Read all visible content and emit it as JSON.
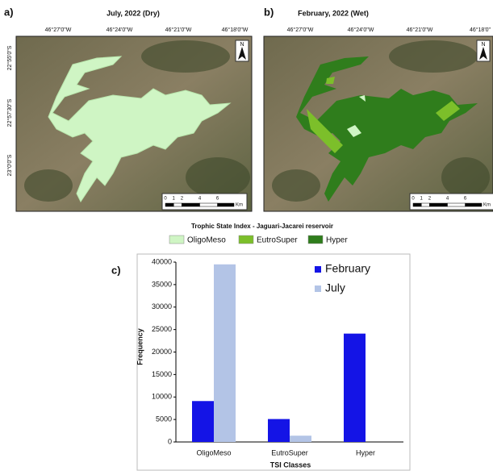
{
  "panels": [
    {
      "label": "a)",
      "title": "July, 2022 (Dry)",
      "lon_labels": [
        "46°27'0\"W",
        "46°24'0\"W",
        "46°21'0\"W",
        "46°18'0\"W"
      ],
      "lat_labels": [
        "22°55'0\"S",
        "22°57'30\"S",
        "23°0'0\"S"
      ],
      "north": "N",
      "scale_labels": [
        "0",
        "1",
        "2",
        "4",
        "6"
      ],
      "scale_unit": "Km"
    },
    {
      "label": "b)",
      "title": "February, 2022 (Wet)",
      "lon_labels": [
        "46°27'0\"W",
        "46°24'0\"W",
        "46°21'0\"W",
        "46°18'0\""
      ],
      "north": "N",
      "scale_labels": [
        "0",
        "1",
        "2",
        "4",
        "6"
      ],
      "scale_unit": "Km"
    }
  ],
  "legend": {
    "title": "Trophic State Index - Jaguari-Jacarei reservoir",
    "items": [
      {
        "label": "OligoMeso",
        "color": "#cff5c4"
      },
      {
        "label": "EutroSuper",
        "color": "#7cbf2a"
      },
      {
        "label": "Hyper",
        "color": "#2f7d1c"
      }
    ]
  },
  "chart_data": {
    "type": "bar",
    "panel_label": "c)",
    "x_label": "TSI Classes",
    "y_label": "Frequency",
    "categories": [
      "OligoMeso",
      "EutroSuper",
      "Hyper"
    ],
    "series": [
      {
        "name": "February",
        "color": "#1414e6",
        "values": [
          9100,
          5100,
          24100
        ]
      },
      {
        "name": "July",
        "color": "#b3c4e6",
        "values": [
          39500,
          1400,
          0
        ]
      }
    ],
    "ylim": [
      0,
      40000
    ],
    "yticks": [
      0,
      5000,
      10000,
      15000,
      20000,
      25000,
      30000,
      35000,
      40000
    ]
  }
}
